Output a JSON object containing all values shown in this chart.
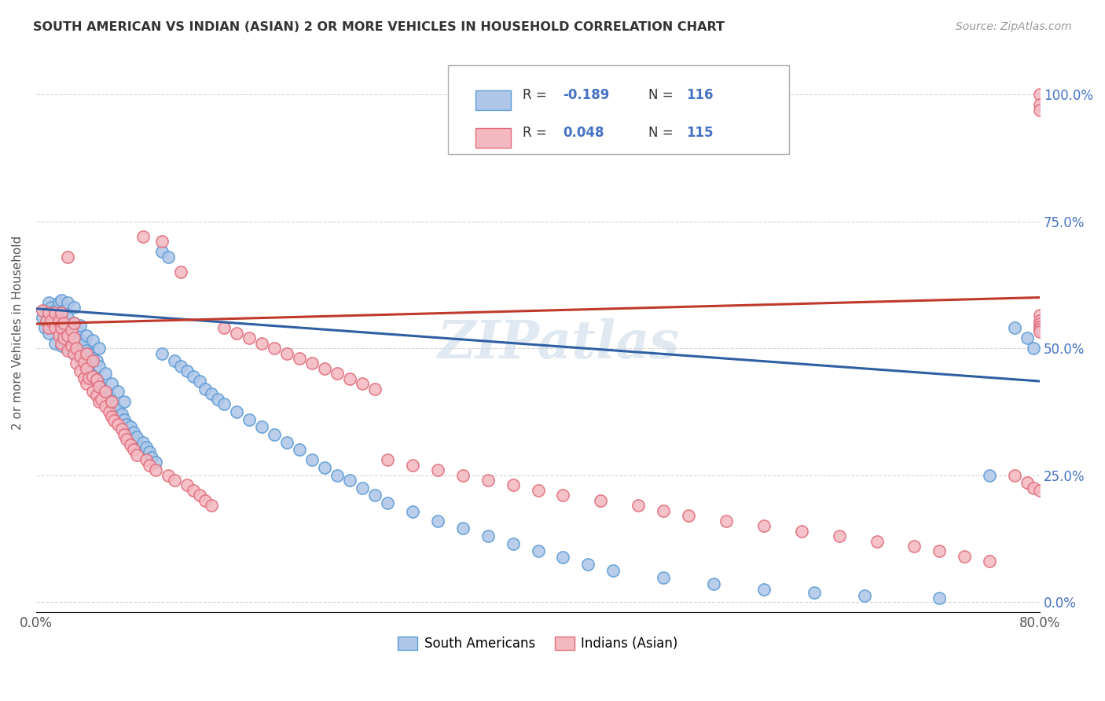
{
  "title": "SOUTH AMERICAN VS INDIAN (ASIAN) 2 OR MORE VEHICLES IN HOUSEHOLD CORRELATION CHART",
  "source": "Source: ZipAtlas.com",
  "ylabel": "2 or more Vehicles in Household",
  "xlim": [
    0.0,
    0.8
  ],
  "ylim": [
    -0.02,
    1.08
  ],
  "xticks": [
    0.0,
    0.1,
    0.2,
    0.3,
    0.4,
    0.5,
    0.6,
    0.7,
    0.8
  ],
  "xticklabels": [
    "0.0%",
    "",
    "",
    "",
    "",
    "",
    "",
    "",
    "80.0%"
  ],
  "yticks": [
    0.0,
    0.25,
    0.5,
    0.75,
    1.0
  ],
  "yticklabels_right": [
    "0.0%",
    "25.0%",
    "50.0%",
    "75.0%",
    "100.0%"
  ],
  "blue_fill": "#aec6e8",
  "blue_edge": "#5b9bd5",
  "pink_fill": "#f4b8c1",
  "pink_edge": "#e06c7a",
  "blue_line_color": "#2e5fa3",
  "pink_line_color": "#c0392b",
  "blue_line_y0": 0.578,
  "blue_line_y1": 0.435,
  "pink_line_y0": 0.548,
  "pink_line_y1": 0.6,
  "watermark": "ZIPatlas",
  "background_color": "#ffffff",
  "grid_color": "#cccccc",
  "right_tick_color": "#4472c4",
  "legend_blue_r": "-0.189",
  "legend_blue_n": "116",
  "legend_pink_r": "0.048",
  "legend_pink_n": "115"
}
